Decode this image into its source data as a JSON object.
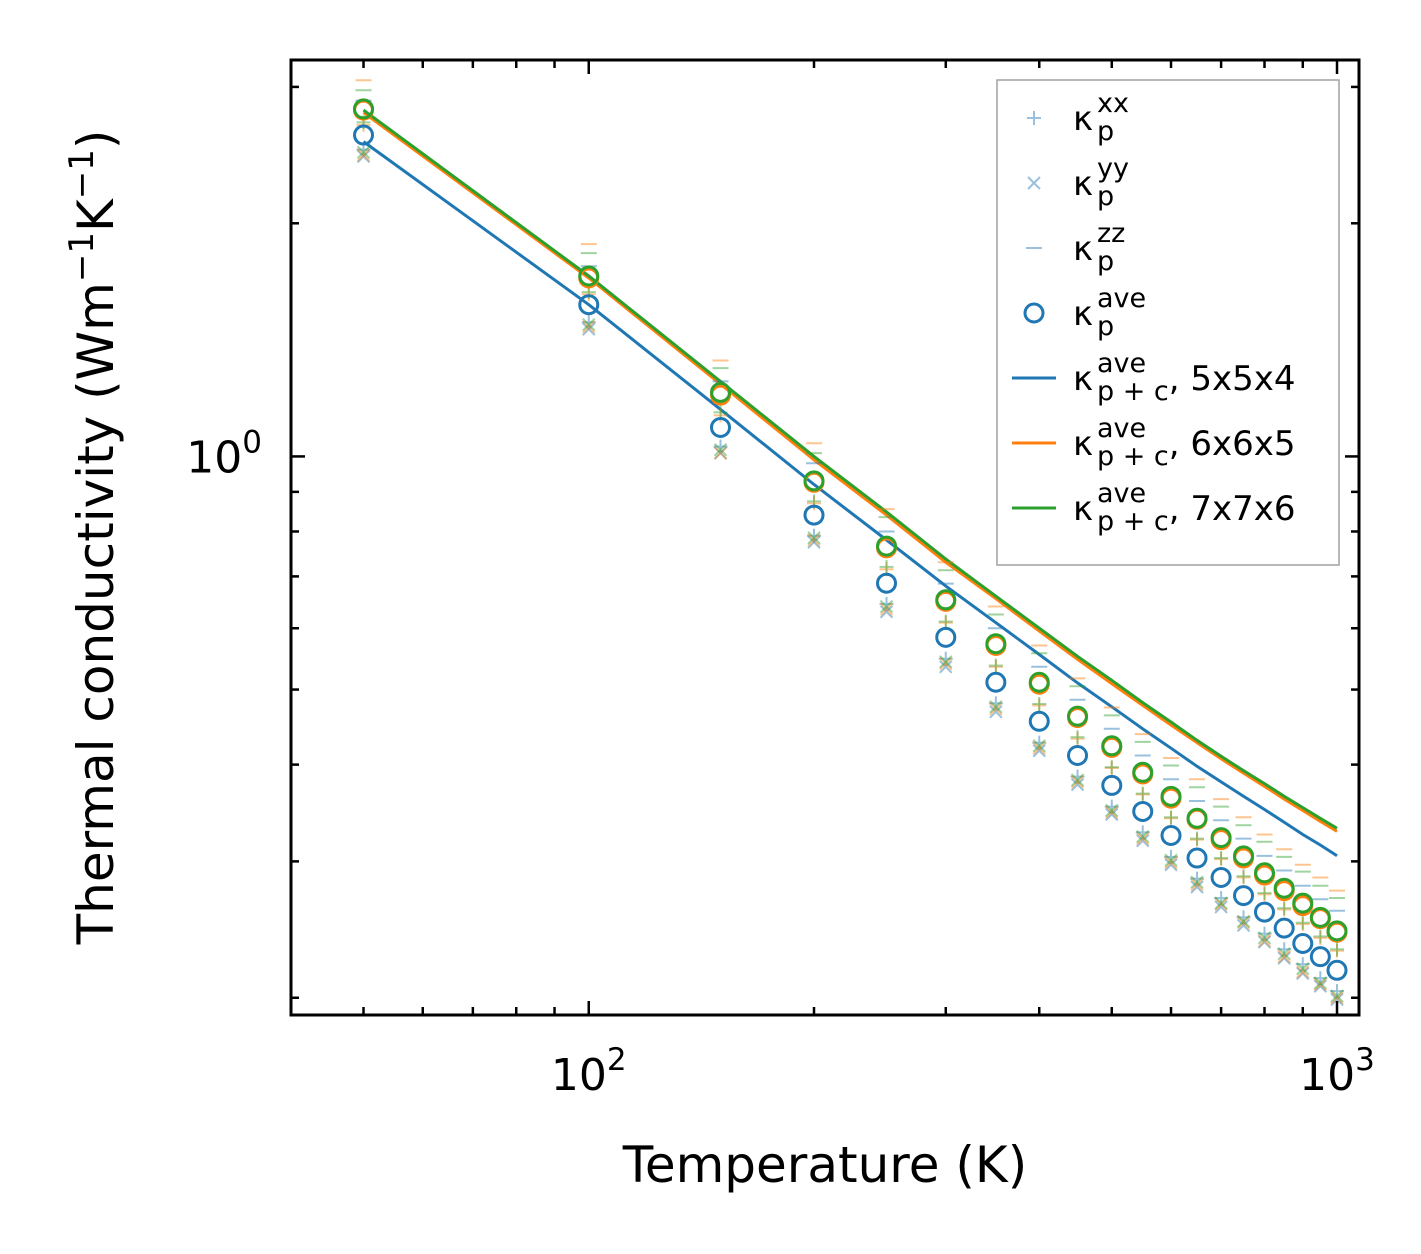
{
  "chart_data": {
    "type": "scatter",
    "xscale": "log",
    "yscale": "log",
    "xlabel": "Temperature (K)",
    "ylabel_parts": {
      "main": "Thermal conductivity (Wm",
      "exp1": "−1",
      "mid": "K",
      "exp2": "−1",
      "end": ")"
    },
    "xlim": [
      40,
      1070
    ],
    "ylim": [
      0.19,
      3.25
    ],
    "xticks": [
      {
        "value": 100,
        "base": "10",
        "exp": "2"
      },
      {
        "value": 1000,
        "base": "10",
        "exp": "3"
      }
    ],
    "yticks": [
      {
        "value": 1,
        "base": "10",
        "exp": "0"
      }
    ],
    "x": [
      50,
      100,
      150,
      200,
      250,
      300,
      350,
      400,
      450,
      500,
      550,
      600,
      650,
      700,
      750,
      800,
      850,
      900,
      950,
      1000
    ],
    "series": [
      {
        "name": "kappa_p_xx",
        "label": "κ",
        "sub": "p",
        "sup": "xx",
        "marker": "plus",
        "color": "#1f77b4",
        "values": [
          2.49,
          1.49,
          1.03,
          0.79,
          0.645,
          0.548,
          0.48,
          0.427,
          0.386,
          0.353,
          0.327,
          0.304,
          0.285,
          0.269,
          0.254,
          0.242,
          0.231,
          0.221,
          0.212,
          0.204
        ]
      },
      {
        "name": "kappa_p_yy",
        "label": "κ",
        "sub": "p",
        "sup": "yy",
        "marker": "cross",
        "color": "#1f77b4",
        "values": [
          2.44,
          1.46,
          1.01,
          0.775,
          0.63,
          0.535,
          0.468,
          0.417,
          0.377,
          0.345,
          0.319,
          0.297,
          0.278,
          0.262,
          0.248,
          0.236,
          0.225,
          0.215,
          0.207,
          0.199
        ]
      },
      {
        "name": "kappa_p_zz",
        "label": "κ",
        "sub": "p",
        "sup": "zz",
        "marker": "hline",
        "color": "#1f77b4",
        "values": [
          2.88,
          1.76,
          1.25,
          0.98,
          0.8,
          0.685,
          0.6,
          0.535,
          0.485,
          0.445,
          0.411,
          0.383,
          0.359,
          0.339,
          0.321,
          0.305,
          0.292,
          0.279,
          0.268,
          0.259
        ]
      },
      {
        "name": "kappa_p_ave",
        "label": "κ",
        "sub": "p",
        "sup": "ave",
        "marker": "circle",
        "color": "#1f77b4",
        "values": [
          2.6,
          1.57,
          1.09,
          0.84,
          0.686,
          0.584,
          0.511,
          0.455,
          0.411,
          0.376,
          0.348,
          0.324,
          0.303,
          0.286,
          0.271,
          0.258,
          0.246,
          0.235,
          0.226,
          0.217
        ]
      },
      {
        "name": "kappa_p_xx_6x6x5",
        "marker": "plus",
        "color": "#ff7f0e",
        "in_legend": false,
        "values": [
          2.68,
          1.62,
          1.13,
          0.87,
          0.715,
          0.61,
          0.535,
          0.477,
          0.432,
          0.396,
          0.366,
          0.341,
          0.32,
          0.302,
          0.286,
          0.272,
          0.26,
          0.249,
          0.239,
          0.23
        ]
      },
      {
        "name": "kappa_p_yy_6x6x5",
        "marker": "cross",
        "color": "#ff7f0e",
        "in_legend": false,
        "values": [
          2.45,
          1.47,
          1.01,
          0.78,
          0.635,
          0.54,
          0.472,
          0.42,
          0.38,
          0.347,
          0.321,
          0.299,
          0.28,
          0.264,
          0.25,
          0.237,
          0.226,
          0.216,
          0.208,
          0.2
        ]
      },
      {
        "name": "kappa_p_zz_6x6x5",
        "marker": "hline",
        "color": "#ff7f0e",
        "in_legend": false,
        "values": [
          3.06,
          1.88,
          1.33,
          1.04,
          0.855,
          0.73,
          0.64,
          0.57,
          0.517,
          0.474,
          0.438,
          0.408,
          0.383,
          0.361,
          0.342,
          0.325,
          0.311,
          0.297,
          0.286,
          0.275
        ]
      },
      {
        "name": "kappa_p_ave_6x6x5",
        "marker": "circle",
        "color": "#ff7f0e",
        "in_legend": false,
        "values": [
          2.8,
          1.7,
          1.2,
          0.926,
          0.762,
          0.65,
          0.57,
          0.508,
          0.46,
          0.421,
          0.389,
          0.362,
          0.34,
          0.32,
          0.303,
          0.288,
          0.275,
          0.263,
          0.253,
          0.243
        ]
      },
      {
        "name": "kappa_p_xx_7x7x6",
        "marker": "plus",
        "color": "#2ca02c",
        "in_legend": false,
        "values": [
          2.7,
          1.63,
          1.14,
          0.875,
          0.72,
          0.612,
          0.537,
          0.479,
          0.434,
          0.397,
          0.367,
          0.342,
          0.321,
          0.303,
          0.287,
          0.273,
          0.261,
          0.25,
          0.24,
          0.231
        ]
      },
      {
        "name": "kappa_p_yy_7x7x6",
        "marker": "cross",
        "color": "#2ca02c",
        "in_legend": false,
        "values": [
          2.47,
          1.48,
          1.02,
          0.785,
          0.64,
          0.543,
          0.475,
          0.423,
          0.382,
          0.349,
          0.323,
          0.301,
          0.282,
          0.265,
          0.251,
          0.239,
          0.228,
          0.218,
          0.209,
          0.201
        ]
      },
      {
        "name": "kappa_p_zz_7x7x6",
        "marker": "hline",
        "color": "#2ca02c",
        "in_legend": false,
        "values": [
          2.97,
          1.83,
          1.3,
          1.01,
          0.835,
          0.713,
          0.625,
          0.557,
          0.505,
          0.463,
          0.428,
          0.399,
          0.374,
          0.353,
          0.334,
          0.318,
          0.304,
          0.291,
          0.279,
          0.269
        ]
      },
      {
        "name": "kappa_p_ave_7x7x6",
        "marker": "circle",
        "color": "#2ca02c",
        "in_legend": false,
        "values": [
          2.81,
          1.71,
          1.21,
          0.93,
          0.766,
          0.653,
          0.573,
          0.511,
          0.462,
          0.423,
          0.391,
          0.364,
          0.341,
          0.322,
          0.305,
          0.29,
          0.277,
          0.265,
          0.254,
          0.244
        ]
      },
      {
        "name": "kappa_pc_ave_5x5x4",
        "label": "κ",
        "sub": "p + c",
        "sup": "ave",
        "suffix": ", 5x5x4",
        "marker": "line",
        "color": "#1f77b4",
        "values": [
          2.55,
          1.57,
          1.15,
          0.92,
          0.78,
          0.68,
          0.61,
          0.555,
          0.51,
          0.475,
          0.445,
          0.42,
          0.398,
          0.38,
          0.364,
          0.35,
          0.337,
          0.325,
          0.315,
          0.305
        ]
      },
      {
        "name": "kappa_pc_ave_6x6x5",
        "label": "κ",
        "sub": "p + c",
        "sup": "ave",
        "suffix": ", 6x6x5",
        "marker": "line",
        "color": "#ff7f0e",
        "values": [
          2.78,
          1.7,
          1.24,
          0.99,
          0.84,
          0.73,
          0.655,
          0.595,
          0.547,
          0.509,
          0.477,
          0.45,
          0.427,
          0.407,
          0.39,
          0.375,
          0.361,
          0.349,
          0.338,
          0.328
        ]
      },
      {
        "name": "kappa_pc_ave_7x7x6",
        "label": "κ",
        "sub": "p + c",
        "sup": "ave",
        "suffix": ", 7x7x6",
        "marker": "line",
        "color": "#2ca02c",
        "values": [
          2.8,
          1.71,
          1.25,
          1.0,
          0.848,
          0.737,
          0.66,
          0.6,
          0.552,
          0.514,
          0.481,
          0.454,
          0.43,
          0.41,
          0.393,
          0.378,
          0.364,
          0.352,
          0.341,
          0.331
        ]
      }
    ],
    "legend_position": "top-right"
  }
}
